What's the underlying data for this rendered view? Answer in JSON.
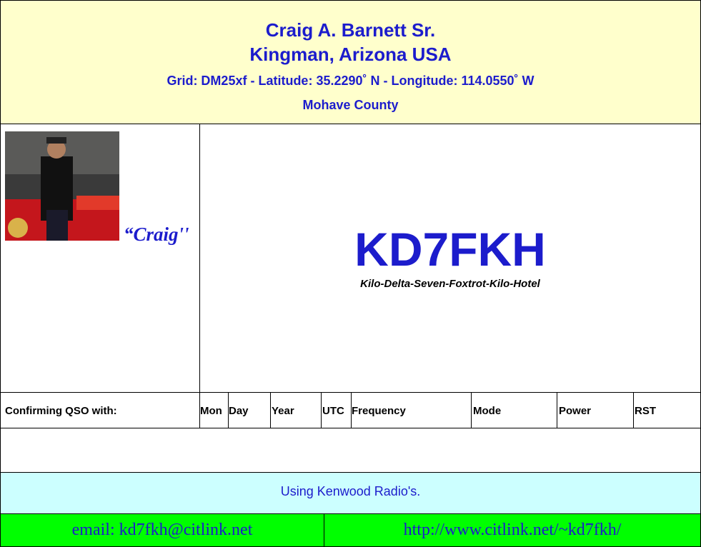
{
  "header": {
    "name": "Craig A. Barnett Sr.",
    "location": "Kingman, Arizona USA",
    "grid": "Grid: DM25xf - Latitude: 35.2290˚ N - Longitude: 114.0550˚ W",
    "county": "Mohave County"
  },
  "photo": {
    "caption": "“Craig''"
  },
  "callsign": {
    "call": "KD7FKH",
    "phonetic": "Kilo-Delta-Seven-Foxtrot-Kilo-Hotel"
  },
  "qso": {
    "columns": [
      "Confirming QSO with:",
      "Mon",
      "Day",
      "Year",
      "UTC",
      "Frequency",
      "Mode",
      "Power",
      "RST"
    ]
  },
  "footer": {
    "equipment": "Using Kenwood Radio's.",
    "email": "email: kd7fkh@citlink.net",
    "website": "http://www.citlink.net/~kd7fkh/"
  }
}
